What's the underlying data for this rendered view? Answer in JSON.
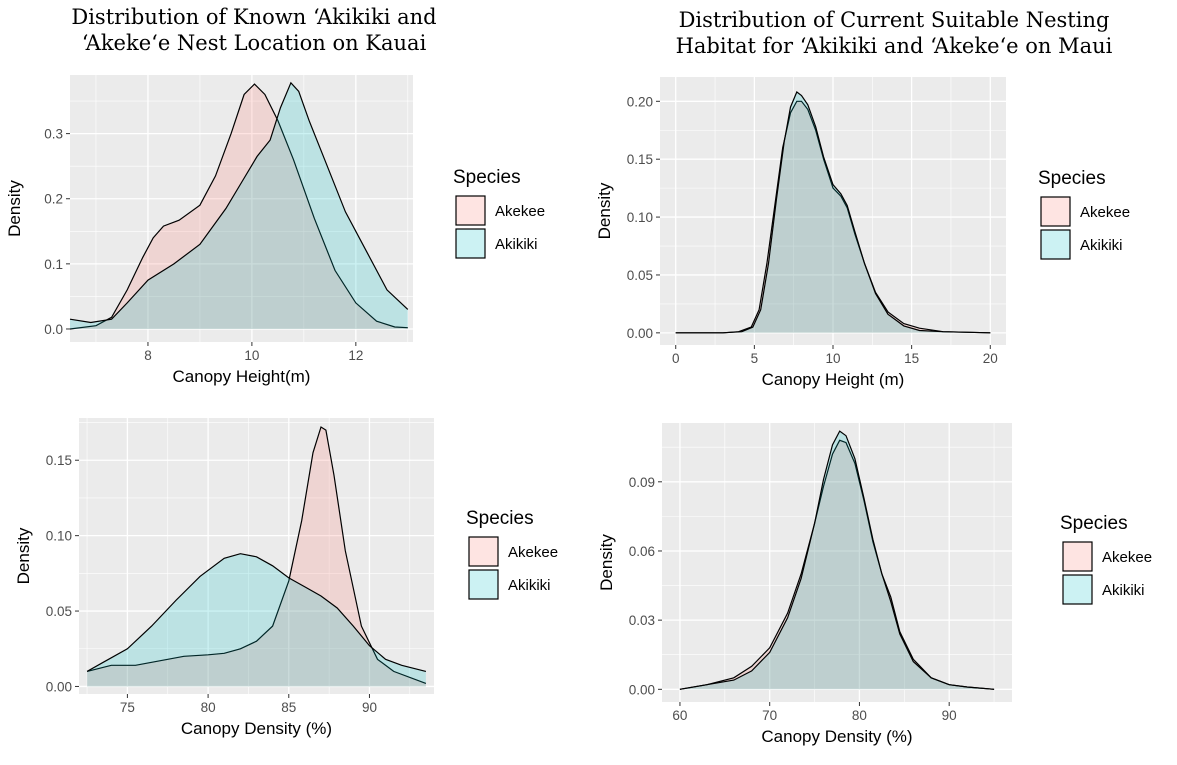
{
  "page": {
    "left_title": [
      "Distribution of Known ‘Akikiki and",
      "‘Akeke‘e Nest Location on Kauai"
    ],
    "right_title": [
      "Distribution of Current Suitable Nesting",
      "Habitat for ‘Akikiki and ‘Akeke‘e on Maui"
    ]
  },
  "colors": {
    "panel_bg": "#ebebeb",
    "grid": "#ffffff",
    "akekee_fill": "#f8766d",
    "akikiki_fill": "#00bfc4",
    "fill_opacity": 0.2,
    "line": "#000000"
  },
  "chart_data": [
    {
      "type": "area",
      "id": "kauai-height",
      "title": "",
      "xlabel": "Canopy Height(m)",
      "ylabel": "Density",
      "xlim": [
        6.5,
        13.1
      ],
      "ylim": [
        -0.02,
        0.39
      ],
      "xticks": [
        8,
        10,
        12
      ],
      "yticks": [
        0.0,
        0.1,
        0.2,
        0.3
      ],
      "ytick_labels": [
        "0.0",
        "0.1",
        "0.2",
        "0.3"
      ],
      "grid": true,
      "legend": {
        "title": "Species",
        "position": "right",
        "entries": [
          "Akekee",
          "Akikiki"
        ]
      },
      "series": [
        {
          "name": "Akekee",
          "x": [
            6.5,
            7.0,
            7.3,
            7.6,
            7.9,
            8.1,
            8.3,
            8.6,
            9.0,
            9.3,
            9.6,
            9.85,
            10.05,
            10.25,
            10.5,
            10.8,
            11.2,
            11.6,
            12.0,
            12.4,
            12.75,
            13.0
          ],
          "y": [
            0.0,
            0.005,
            0.018,
            0.06,
            0.11,
            0.14,
            0.158,
            0.167,
            0.19,
            0.235,
            0.3,
            0.36,
            0.376,
            0.36,
            0.32,
            0.26,
            0.17,
            0.09,
            0.04,
            0.012,
            0.003,
            0.002
          ]
        },
        {
          "name": "Akikiki",
          "x": [
            6.5,
            6.9,
            7.3,
            7.6,
            8.0,
            8.5,
            9.0,
            9.5,
            9.8,
            10.1,
            10.35,
            10.55,
            10.75,
            10.9,
            11.1,
            11.4,
            11.8,
            12.2,
            12.6,
            13.0
          ],
          "y": [
            0.015,
            0.01,
            0.015,
            0.04,
            0.075,
            0.1,
            0.13,
            0.185,
            0.225,
            0.265,
            0.29,
            0.34,
            0.378,
            0.365,
            0.32,
            0.26,
            0.18,
            0.12,
            0.06,
            0.03
          ]
        }
      ]
    },
    {
      "type": "area",
      "id": "kauai-density",
      "title": "",
      "xlabel": "Canopy Density (%)",
      "ylabel": "Density",
      "xlim": [
        72.0,
        94.0
      ],
      "ylim": [
        -0.005,
        0.178
      ],
      "xticks": [
        75,
        80,
        85,
        90
      ],
      "yticks": [
        0.0,
        0.05,
        0.1,
        0.15
      ],
      "ytick_labels": [
        "0.00",
        "0.05",
        "0.10",
        "0.15"
      ],
      "grid": true,
      "legend": {
        "title": "Species",
        "position": "right",
        "entries": [
          "Akekee",
          "Akikiki"
        ]
      },
      "series": [
        {
          "name": "Akekee",
          "x": [
            72.5,
            74.0,
            75.5,
            77.0,
            78.5,
            80.0,
            81.0,
            82.0,
            83.0,
            84.0,
            85.0,
            85.8,
            86.5,
            87.0,
            87.3,
            87.8,
            88.5,
            89.5,
            90.5,
            91.5,
            93.5
          ],
          "y": [
            0.01,
            0.014,
            0.014,
            0.017,
            0.02,
            0.021,
            0.022,
            0.025,
            0.03,
            0.04,
            0.07,
            0.11,
            0.155,
            0.172,
            0.17,
            0.14,
            0.09,
            0.04,
            0.018,
            0.01,
            0.002
          ]
        },
        {
          "name": "Akikiki",
          "x": [
            72.5,
            73.5,
            75.0,
            76.5,
            78.0,
            79.5,
            81.0,
            82.0,
            83.0,
            84.0,
            85.0,
            86.0,
            87.0,
            88.0,
            89.0,
            90.0,
            91.0,
            92.0,
            93.5
          ],
          "y": [
            0.01,
            0.016,
            0.025,
            0.04,
            0.057,
            0.073,
            0.085,
            0.088,
            0.086,
            0.08,
            0.072,
            0.066,
            0.06,
            0.052,
            0.04,
            0.027,
            0.018,
            0.014,
            0.01
          ]
        }
      ]
    },
    {
      "type": "area",
      "id": "maui-height",
      "title": "",
      "xlabel": "Canopy Height (m)",
      "ylabel": "Density",
      "xlim": [
        -1.0,
        21.0
      ],
      "ylim": [
        -0.0105,
        0.221
      ],
      "xticks": [
        0,
        5,
        10,
        15,
        20
      ],
      "yticks": [
        0.0,
        0.05,
        0.1,
        0.15,
        0.2
      ],
      "ytick_labels": [
        "0.00",
        "0.05",
        "0.10",
        "0.15",
        "0.20"
      ],
      "grid": true,
      "legend": {
        "title": "Species",
        "position": "right",
        "entries": [
          "Akekee",
          "Akikiki"
        ]
      },
      "series": [
        {
          "name": "Akekee",
          "x": [
            0,
            3.0,
            4.0,
            4.8,
            5.3,
            5.8,
            6.3,
            6.8,
            7.3,
            7.7,
            8.0,
            8.4,
            8.9,
            9.4,
            10.0,
            10.5,
            10.9,
            11.4,
            12.0,
            12.7,
            13.5,
            14.5,
            15.5,
            17.0,
            20.0
          ],
          "y": [
            0,
            0,
            0.001,
            0.005,
            0.02,
            0.06,
            0.11,
            0.16,
            0.19,
            0.2,
            0.2,
            0.193,
            0.175,
            0.15,
            0.125,
            0.118,
            0.108,
            0.085,
            0.06,
            0.035,
            0.018,
            0.008,
            0.004,
            0.001,
            0
          ]
        },
        {
          "name": "Akikiki",
          "x": [
            0,
            3.0,
            4.2,
            4.9,
            5.4,
            5.9,
            6.4,
            6.9,
            7.3,
            7.7,
            8.0,
            8.4,
            8.9,
            9.4,
            10.0,
            10.5,
            10.9,
            11.4,
            12.0,
            12.7,
            13.5,
            14.5,
            15.5,
            17.0,
            20.0
          ],
          "y": [
            0,
            0,
            0.001,
            0.005,
            0.02,
            0.06,
            0.115,
            0.165,
            0.195,
            0.208,
            0.205,
            0.197,
            0.178,
            0.152,
            0.128,
            0.12,
            0.11,
            0.087,
            0.06,
            0.034,
            0.016,
            0.006,
            0.002,
            0.001,
            0
          ]
        }
      ]
    },
    {
      "type": "area",
      "id": "maui-density",
      "title": "",
      "xlabel": "Canopy Density (%)",
      "ylabel": "Density",
      "xlim": [
        58.0,
        97.0
      ],
      "ylim": [
        -0.0055,
        0.1155
      ],
      "xticks": [
        60,
        70,
        80,
        90
      ],
      "yticks": [
        0.0,
        0.03,
        0.06,
        0.09
      ],
      "ytick_labels": [
        "0.00",
        "0.03",
        "0.06",
        "0.09"
      ],
      "grid": true,
      "legend": {
        "title": "Species",
        "position": "right",
        "entries": [
          "Akekee",
          "Akikiki"
        ]
      },
      "series": [
        {
          "name": "Akekee",
          "x": [
            60,
            63,
            66,
            68,
            70,
            72,
            73.5,
            75,
            76,
            77,
            77.8,
            78.5,
            79.5,
            80.5,
            81.5,
            82.5,
            83.5,
            84.5,
            86,
            88,
            90,
            92,
            95
          ],
          "y": [
            0,
            0.002,
            0.005,
            0.01,
            0.018,
            0.033,
            0.05,
            0.072,
            0.088,
            0.102,
            0.108,
            0.107,
            0.098,
            0.082,
            0.064,
            0.05,
            0.04,
            0.025,
            0.013,
            0.005,
            0.002,
            0.001,
            0
          ]
        },
        {
          "name": "Akikiki",
          "x": [
            60,
            63,
            66,
            68,
            70,
            72,
            73.5,
            75,
            76,
            77,
            77.8,
            78.5,
            79.5,
            80.5,
            81.5,
            82.5,
            83.5,
            84.5,
            86,
            88,
            90,
            92,
            95
          ],
          "y": [
            0,
            0.002,
            0.004,
            0.008,
            0.016,
            0.031,
            0.048,
            0.072,
            0.091,
            0.106,
            0.112,
            0.11,
            0.1,
            0.083,
            0.065,
            0.05,
            0.038,
            0.024,
            0.012,
            0.005,
            0.002,
            0.001,
            0
          ]
        }
      ]
    }
  ]
}
